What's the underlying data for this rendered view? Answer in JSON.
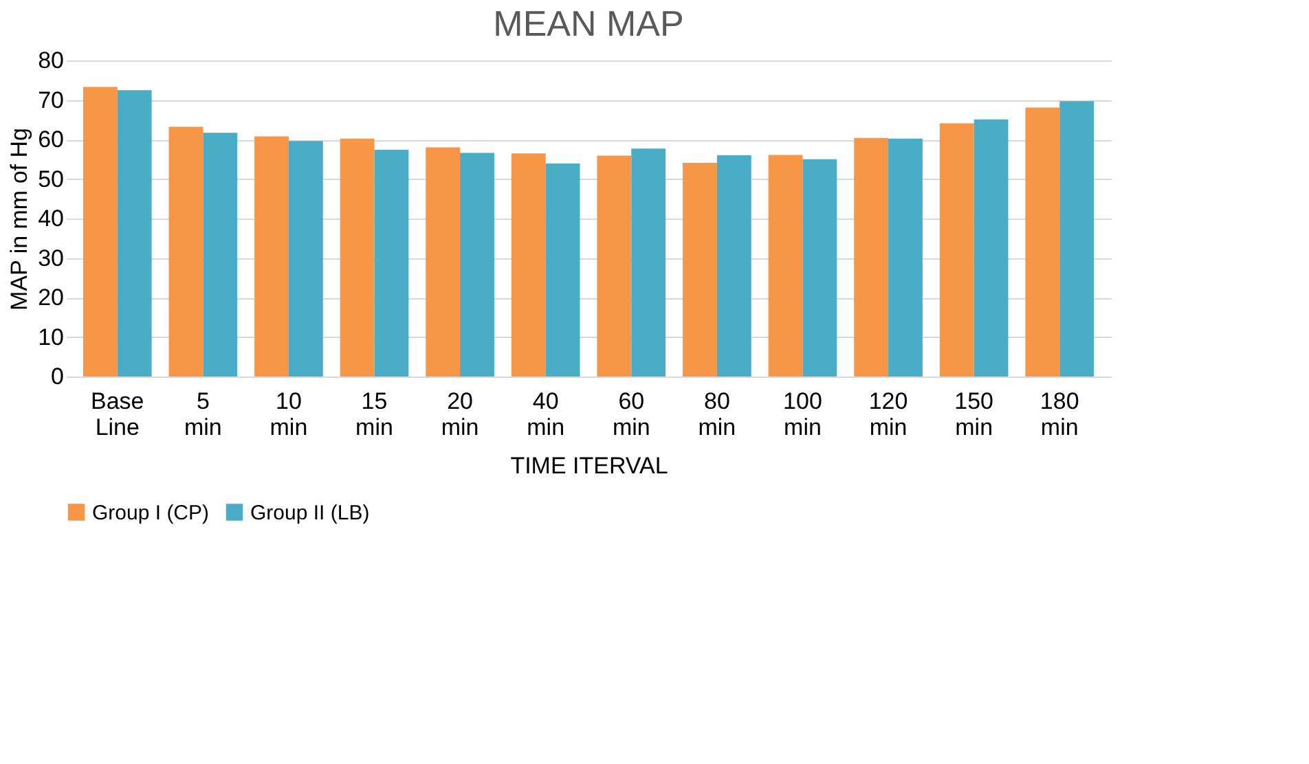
{
  "chart_data": {
    "type": "bar",
    "title": "MEAN MAP",
    "xlabel": "TIME ITERVAL",
    "ylabel": "MAP in mm of Hg",
    "categories": [
      "Base Line",
      "5 min",
      "10 min",
      "15 min",
      "20 min",
      "40 min",
      "60 min",
      "80 min",
      "100 min",
      "120 min",
      "150 min",
      "180 min"
    ],
    "series": [
      {
        "name": "Group I (CP)",
        "color": "#f79646",
        "values": [
          73.3,
          63.2,
          60.8,
          60.2,
          58.0,
          56.5,
          55.9,
          54.1,
          56.1,
          60.4,
          64.1,
          68.1
        ]
      },
      {
        "name": "Group II (LB)",
        "color": "#4bacc6",
        "values": [
          72.5,
          61.7,
          59.6,
          57.4,
          56.6,
          53.9,
          57.7,
          56.0,
          55.0,
          60.2,
          65.1,
          69.7
        ]
      }
    ],
    "ylim": [
      0,
      80
    ],
    "yticks": [
      0,
      10,
      20,
      30,
      40,
      50,
      60,
      70,
      80
    ],
    "grid": "y",
    "legend": "bottom"
  }
}
